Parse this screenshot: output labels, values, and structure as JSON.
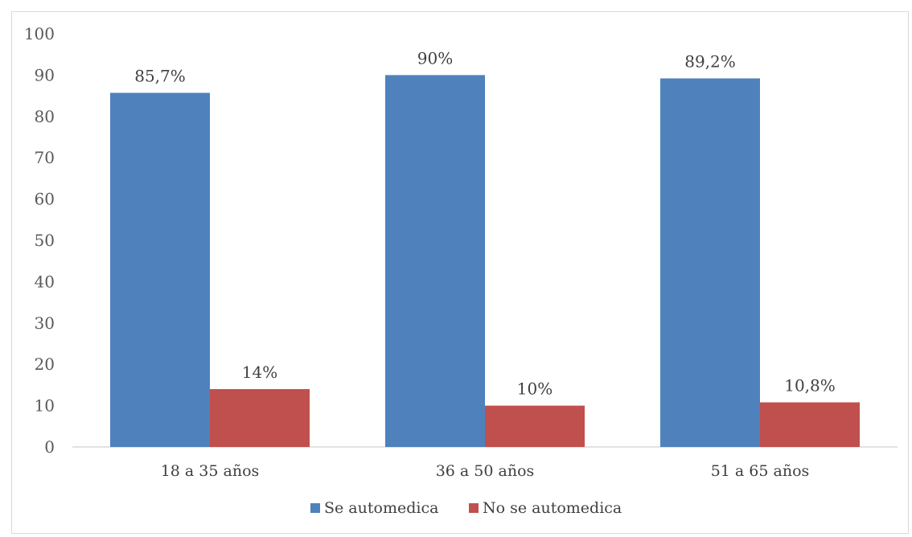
{
  "chart_data": {
    "type": "bar",
    "categories": [
      "18 a 35 años",
      "36 a 50 años",
      "51 a 65 años"
    ],
    "series": [
      {
        "name": "Se automedica",
        "color": "#4f81bd",
        "values": [
          85.7,
          90,
          89.2
        ],
        "labels": [
          "85,7%",
          "90%",
          "89,2%"
        ]
      },
      {
        "name": "No se automedica",
        "color": "#c0504d",
        "values": [
          14,
          10,
          10.8
        ],
        "labels": [
          "14%",
          "10%",
          "10,8%"
        ]
      }
    ],
    "title": "",
    "xlabel": "",
    "ylabel": "",
    "ylim": [
      0,
      100
    ],
    "yticks": [
      0,
      10,
      20,
      30,
      40,
      50,
      60,
      70,
      80,
      90,
      100
    ],
    "grid": false,
    "legend_position": "bottom"
  }
}
